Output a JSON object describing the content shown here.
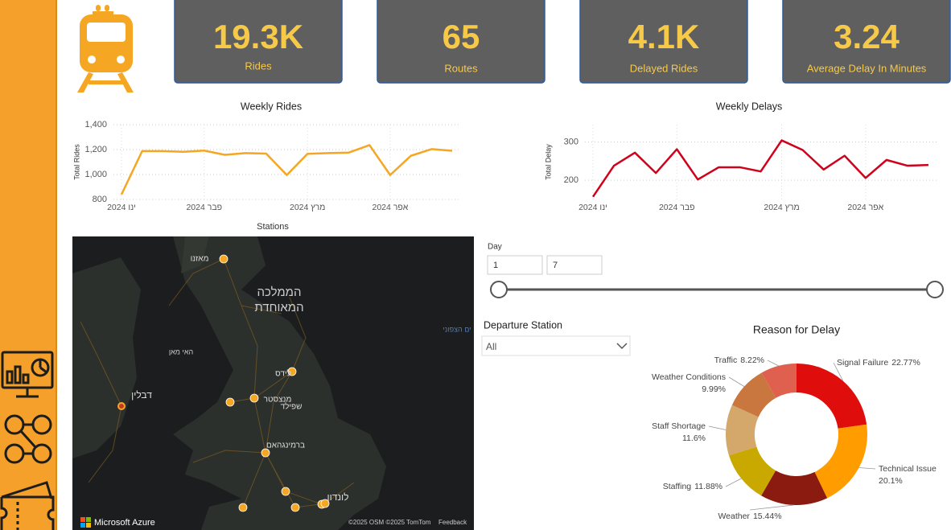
{
  "kpis": [
    {
      "value": "19.3K",
      "label": "Rides"
    },
    {
      "value": "65",
      "label": "Routes"
    },
    {
      "value": "4.1K",
      "label": "Delayed Rides"
    },
    {
      "value": "3.24",
      "label": "Average Delay In Minutes"
    }
  ],
  "chart_data": [
    {
      "type": "line",
      "title": "Weekly Rides",
      "y_label": "Total Rides",
      "categories": [
        "ינו 2024",
        null,
        null,
        null,
        "פבר 2024",
        null,
        null,
        null,
        null,
        "מרץ 2024",
        null,
        null,
        null,
        "אפר 2024",
        null,
        null,
        null
      ],
      "values": [
        840,
        1188,
        1188,
        1182,
        1192,
        1158,
        1172,
        1168,
        996,
        1166,
        1172,
        1176,
        1236,
        996,
        1150,
        1204,
        1190
      ],
      "color": "#f5a623",
      "ylim": [
        800,
        1400
      ],
      "yticks": [
        800,
        {
          "value": 1000,
          "label": "1,000"
        },
        {
          "value": 1200,
          "label": "1,200"
        },
        {
          "value": 1400,
          "label": "1,400"
        }
      ],
      "grid": true
    },
    {
      "type": "line",
      "title": "Weekly Delays",
      "y_label": "Total Delay",
      "categories": [
        "ינו 2024",
        null,
        null,
        null,
        "פבר 2024",
        null,
        null,
        null,
        null,
        "מרץ 2024",
        null,
        null,
        null,
        "אפר 2024",
        null,
        null,
        null
      ],
      "values": [
        157,
        238,
        272,
        219,
        281,
        202,
        234,
        234,
        223,
        304,
        279,
        228,
        264,
        206,
        253,
        238,
        240
      ],
      "color": "#d0021b",
      "ylim": [
        150,
        345
      ],
      "yticks": [
        200,
        300
      ],
      "grid": true
    },
    {
      "type": "pie",
      "title": "Reason for Delay",
      "categories": [
        "Signal Failure",
        "Technical Issue",
        "Weather",
        "Staffing",
        "Staff Shortage",
        "Weather Conditions",
        "Traffic"
      ],
      "values": [
        22.77,
        20.1,
        15.44,
        11.88,
        11.6,
        9.99,
        8.22
      ],
      "value_labels": [
        "22.77%",
        "20.1%",
        "15.44%",
        "11.88%",
        "11.6%",
        "9.99%",
        "8.22%"
      ],
      "colors": [
        "#e00d0d",
        "#ff9d00",
        "#8b1a10",
        "#c9a800",
        "#d4a86a",
        "#c9773e",
        "#e0604f"
      ]
    }
  ],
  "map": {
    "title": "Stations",
    "labels": [
      "מאזנו",
      "הממלכה",
      "המאוחדת",
      "האי מאן",
      "דבלין",
      "לידס",
      "מנצסטר",
      "שפילד",
      "ברמינגהאם",
      "לונדון",
      "ים הצפוני"
    ],
    "logo": "Microsoft Azure",
    "attribution": "©2025 OSM  ©2025 TomTom",
    "feedback": "Feedback"
  },
  "filters": {
    "day": {
      "label": "Day",
      "from": 1,
      "to": 7
    },
    "departure": {
      "label": "Departure Station",
      "value": "All"
    }
  }
}
